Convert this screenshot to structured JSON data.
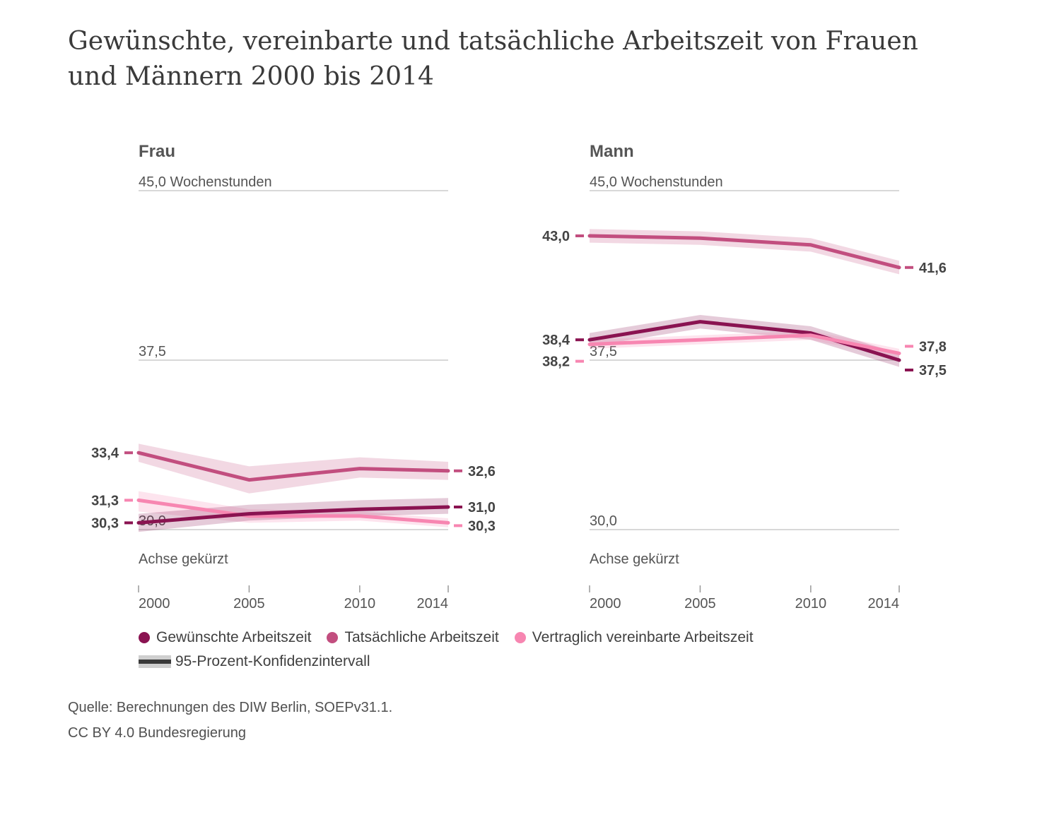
{
  "title": "Gewünschte, vereinbarte und tatsächliche Arbeitszeit von Frauen und Männern 2000 bis 2014",
  "colors": {
    "gewuenscht": "#8a1351",
    "tatsaechlich": "#c24e7f",
    "vertraglich": "#f786b1",
    "gridline": "#cccccc",
    "text": "#404040"
  },
  "legend": {
    "items": [
      "Gewünschte Arbeitszeit",
      "Tatsächliche Arbeitszeit",
      "Vertraglich vereinbarte Arbeitszeit"
    ],
    "ci_label": "95-Prozent-Konfidenzintervall"
  },
  "source": {
    "line1": "Quelle: Berechnungen des DIW Berlin, SOEPv31.1.",
    "line2": "CC BY 4.0 Bundesregierung"
  },
  "chart_data": [
    {
      "type": "line",
      "title": "Frau",
      "y_top_label": "45,0 Wochenstunden",
      "y_ticks": [
        {
          "value": 45.0,
          "label": "45,0"
        },
        {
          "value": 37.5,
          "label": "37,5"
        },
        {
          "value": 30.0,
          "label": "30,0"
        }
      ],
      "axis_note": "Achse gekürzt",
      "x": [
        2000,
        2005,
        2010,
        2014
      ],
      "ylim": [
        30.0,
        45.0
      ],
      "series": [
        {
          "name": "Tatsächliche Arbeitszeit",
          "key": "tatsaechlich",
          "values": [
            33.4,
            32.2,
            32.7,
            32.6
          ],
          "ci_low": [
            33.0,
            31.6,
            32.3,
            32.2
          ],
          "ci_high": [
            33.8,
            32.8,
            33.2,
            33.0
          ],
          "start_label": "33,4",
          "end_label": "32,6"
        },
        {
          "name": "Vertraglich vereinbarte Arbeitszeit",
          "key": "vertraglich",
          "values": [
            31.3,
            30.6,
            30.6,
            30.3
          ],
          "ci_low": [
            30.8,
            30.3,
            30.4,
            30.1
          ],
          "ci_high": [
            31.7,
            30.9,
            30.8,
            30.5
          ],
          "start_label": "31,3",
          "end_label": "30,3"
        },
        {
          "name": "Gewünschte Arbeitszeit",
          "key": "gewuenscht",
          "values": [
            30.3,
            30.7,
            30.9,
            31.0
          ],
          "ci_low": [
            29.9,
            30.4,
            30.6,
            30.7
          ],
          "ci_high": [
            30.7,
            31.1,
            31.3,
            31.4
          ],
          "start_label": "30,3",
          "end_label": "31,0"
        }
      ]
    },
    {
      "type": "line",
      "title": "Mann",
      "y_top_label": "45,0 Wochenstunden",
      "y_ticks": [
        {
          "value": 45.0,
          "label": "45,0"
        },
        {
          "value": 37.5,
          "label": "37,5"
        },
        {
          "value": 30.0,
          "label": "30,0"
        }
      ],
      "axis_note": "Achse gekürzt",
      "x": [
        2000,
        2005,
        2010,
        2014
      ],
      "ylim": [
        30.0,
        45.0
      ],
      "series": [
        {
          "name": "Tatsächliche Arbeitszeit",
          "key": "tatsaechlich",
          "values": [
            43.0,
            42.9,
            42.6,
            41.6
          ],
          "ci_low": [
            42.7,
            42.6,
            42.3,
            41.3
          ],
          "ci_high": [
            43.3,
            43.2,
            42.9,
            41.9
          ],
          "start_label": "43,0",
          "end_label": "41,6"
        },
        {
          "name": "Gewünschte Arbeitszeit",
          "key": "gewuenscht",
          "values": [
            38.4,
            39.2,
            38.7,
            37.5
          ],
          "ci_low": [
            38.1,
            38.9,
            38.4,
            37.2
          ],
          "ci_high": [
            38.7,
            39.5,
            39.0,
            37.8
          ],
          "start_label": "38,4",
          "end_label": "37,5"
        },
        {
          "name": "Vertraglich vereinbarte Arbeitszeit",
          "key": "vertraglich",
          "values": [
            38.2,
            38.4,
            38.6,
            37.8
          ],
          "ci_low": [
            38.0,
            38.2,
            38.4,
            37.6
          ],
          "ci_high": [
            38.4,
            38.6,
            38.8,
            38.0
          ],
          "start_label": "38,2",
          "end_label": "37,8"
        }
      ]
    }
  ]
}
